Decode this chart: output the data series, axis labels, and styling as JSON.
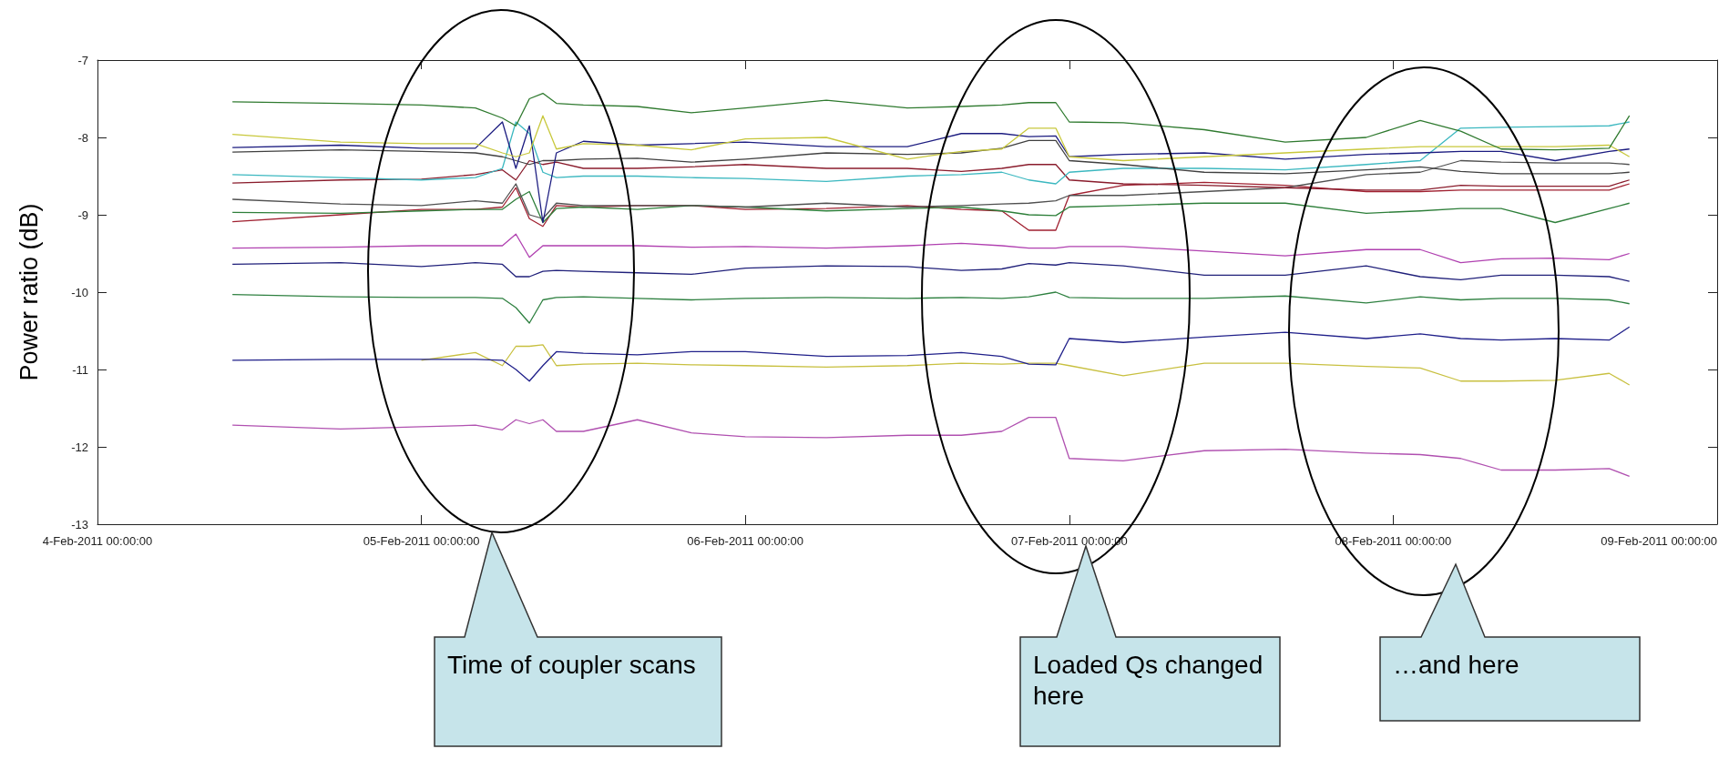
{
  "chart_data": {
    "type": "line",
    "ylabel": "Power ratio (dB)",
    "x": [
      "2011-02-04T10:00",
      "2011-02-04T18:00",
      "2011-02-05T00:00",
      "2011-02-05T04:00",
      "2011-02-05T06:00",
      "2011-02-05T07:00",
      "2011-02-05T08:00",
      "2011-02-05T09:00",
      "2011-02-05T10:00",
      "2011-02-05T12:00",
      "2011-02-05T16:00",
      "2011-02-05T20:00",
      "2011-02-06T00:00",
      "2011-02-06T06:00",
      "2011-02-06T12:00",
      "2011-02-06T16:00",
      "2011-02-06T19:00",
      "2011-02-06T21:00",
      "2011-02-06T23:00",
      "2011-02-07T00:00",
      "2011-02-07T04:00",
      "2011-02-07T10:00",
      "2011-02-07T16:00",
      "2011-02-07T22:00",
      "2011-02-08T02:00",
      "2011-02-08T05:00",
      "2011-02-08T08:00",
      "2011-02-08T12:00",
      "2011-02-08T16:00",
      "2011-02-08T17:30"
    ],
    "series": [
      {
        "color": "#2f7a2f",
        "values": [
          -7.54,
          -7.56,
          -7.58,
          -7.62,
          -7.75,
          -7.85,
          -7.5,
          -7.43,
          -7.56,
          -7.58,
          -7.6,
          -7.68,
          -7.62,
          -7.52,
          -7.62,
          -7.6,
          -7.58,
          -7.55,
          -7.55,
          -7.8,
          -7.81,
          -7.9,
          -8.06,
          -8.0,
          -7.78,
          -7.92,
          -8.15,
          -8.16,
          -8.14,
          -7.72
        ]
      },
      {
        "color": "#c8c83c",
        "values": [
          -7.96,
          -8.06,
          -8.08,
          -8.08,
          -8.2,
          -8.25,
          -8.2,
          -7.72,
          -8.15,
          -8.08,
          -8.1,
          -8.16,
          -8.02,
          -8.0,
          -8.28,
          -8.18,
          -8.15,
          -7.88,
          -7.88,
          -8.25,
          -8.3,
          -8.25,
          -8.2,
          -8.15,
          -8.12,
          -8.12,
          -8.12,
          -8.12,
          -8.1,
          -8.25
        ]
      },
      {
        "color": "#1c1c80",
        "values": [
          -8.13,
          -8.1,
          -8.14,
          -8.14,
          -7.8,
          -8.4,
          -7.85,
          -9.1,
          -8.2,
          -8.05,
          -8.1,
          -8.08,
          -8.06,
          -8.12,
          -8.12,
          -7.95,
          -7.95,
          -7.99,
          -7.98,
          -8.25,
          -8.22,
          -8.2,
          -8.28,
          -8.22,
          -8.2,
          -8.18,
          -8.18,
          -8.3,
          -8.18,
          -8.15
        ]
      },
      {
        "color": "#404040",
        "values": [
          -8.19,
          -8.16,
          -8.18,
          -8.2,
          -8.25,
          -8.3,
          -8.35,
          -8.3,
          -8.3,
          -8.28,
          -8.27,
          -8.32,
          -8.28,
          -8.2,
          -8.22,
          -8.2,
          -8.14,
          -8.04,
          -8.04,
          -8.3,
          -8.35,
          -8.45,
          -8.47,
          -8.42,
          -8.38,
          -8.44,
          -8.47,
          -8.47,
          -8.47,
          -8.45
        ]
      },
      {
        "color": "#3cb8c0",
        "values": [
          -8.48,
          -8.52,
          -8.55,
          -8.52,
          -8.4,
          -7.8,
          -7.95,
          -8.45,
          -8.52,
          -8.5,
          -8.5,
          -8.52,
          -8.53,
          -8.57,
          -8.5,
          -8.48,
          -8.45,
          -8.55,
          -8.6,
          -8.45,
          -8.4,
          -8.4,
          -8.42,
          -8.35,
          -8.3,
          -7.88,
          -7.87,
          -7.86,
          -7.85,
          -7.8
        ]
      },
      {
        "color": "#8a1c2c",
        "values": [
          -8.59,
          -8.55,
          -8.54,
          -8.48,
          -8.42,
          -8.55,
          -8.3,
          -8.35,
          -8.32,
          -8.4,
          -8.4,
          -8.38,
          -8.35,
          -8.4,
          -8.4,
          -8.44,
          -8.4,
          -8.35,
          -8.35,
          -8.55,
          -8.6,
          -8.62,
          -8.65,
          -8.68,
          -8.68,
          -8.62,
          -8.63,
          -8.63,
          -8.63,
          -8.55
        ]
      },
      {
        "color": "#505050",
        "values": [
          -8.8,
          -8.86,
          -8.88,
          -8.82,
          -8.85,
          -8.6,
          -9.0,
          -9.05,
          -8.85,
          -8.88,
          -8.88,
          -8.88,
          -8.9,
          -8.85,
          -8.9,
          -8.88,
          -8.86,
          -8.85,
          -8.82,
          -8.75,
          -8.75,
          -8.7,
          -8.65,
          -8.48,
          -8.45,
          -8.3,
          -8.32,
          -8.33,
          -8.33,
          -8.35
        ]
      },
      {
        "color": "#2e7f3a",
        "values": [
          -8.97,
          -8.98,
          -8.95,
          -8.93,
          -8.93,
          -8.8,
          -8.7,
          -9.1,
          -8.92,
          -8.9,
          -8.93,
          -8.88,
          -8.9,
          -8.95,
          -8.92,
          -8.9,
          -8.95,
          -9.0,
          -9.01,
          -8.9,
          -8.88,
          -8.85,
          -8.85,
          -8.98,
          -8.95,
          -8.92,
          -8.92,
          -9.1,
          -8.92,
          -8.85
        ]
      },
      {
        "color": "#a02030",
        "values": [
          -9.09,
          -9.0,
          -8.93,
          -8.93,
          -8.9,
          -8.65,
          -9.05,
          -9.15,
          -8.88,
          -8.9,
          -8.88,
          -8.88,
          -8.93,
          -8.92,
          -8.88,
          -8.93,
          -8.95,
          -9.2,
          -9.2,
          -8.75,
          -8.62,
          -8.58,
          -8.62,
          -8.7,
          -8.7,
          -8.68,
          -8.68,
          -8.68,
          -8.68,
          -8.6
        ]
      },
      {
        "color": "#b040b0",
        "values": [
          -9.43,
          -9.42,
          -9.4,
          -9.4,
          -9.4,
          -9.25,
          -9.55,
          -9.4,
          -9.4,
          -9.4,
          -9.4,
          -9.42,
          -9.41,
          -9.43,
          -9.4,
          -9.37,
          -9.4,
          -9.43,
          -9.43,
          -9.41,
          -9.41,
          -9.47,
          -9.53,
          -9.45,
          -9.45,
          -9.62,
          -9.57,
          -9.56,
          -9.58,
          -9.5
        ]
      },
      {
        "color": "#20207a",
        "values": [
          -9.64,
          -9.62,
          -9.67,
          -9.62,
          -9.64,
          -9.8,
          -9.8,
          -9.73,
          -9.72,
          -9.73,
          -9.75,
          -9.77,
          -9.69,
          -9.66,
          -9.67,
          -9.72,
          -9.7,
          -9.63,
          -9.65,
          -9.62,
          -9.66,
          -9.78,
          -9.78,
          -9.66,
          -9.8,
          -9.84,
          -9.78,
          -9.78,
          -9.8,
          -9.86
        ]
      },
      {
        "color": "#2e8040",
        "values": [
          -10.03,
          -10.06,
          -10.07,
          -10.07,
          -10.08,
          -10.2,
          -10.4,
          -10.1,
          -10.07,
          -10.06,
          -10.08,
          -10.1,
          -10.08,
          -10.07,
          -10.08,
          -10.07,
          -10.08,
          -10.06,
          -10.0,
          -10.07,
          -10.08,
          -10.08,
          -10.05,
          -10.14,
          -10.06,
          -10.1,
          -10.08,
          -10.08,
          -10.1,
          -10.15
        ]
      },
      {
        "color": "#20208a",
        "values": [
          -10.88,
          -10.87,
          -10.87,
          -10.87,
          -10.88,
          -11.0,
          -11.15,
          -10.95,
          -10.77,
          -10.79,
          -10.81,
          -10.77,
          -10.77,
          -10.83,
          -10.82,
          -10.78,
          -10.83,
          -10.93,
          -10.94,
          -10.6,
          -10.65,
          -10.58,
          -10.52,
          -10.6,
          -10.54,
          -10.6,
          -10.62,
          -10.6,
          -10.62,
          -10.45
        ]
      },
      {
        "color": "#c8c040",
        "values": [
          null,
          null,
          -10.88,
          -10.78,
          -10.95,
          -10.7,
          -10.7,
          -10.68,
          -10.95,
          -10.93,
          -10.92,
          -10.94,
          -10.95,
          -10.97,
          -10.95,
          -10.92,
          -10.93,
          -10.92,
          -10.92,
          -10.95,
          -11.08,
          -10.92,
          -10.92,
          -10.96,
          -10.98,
          -11.15,
          -11.15,
          -11.14,
          -11.05,
          -11.2
        ]
      },
      {
        "color": "#b050b0",
        "values": [
          -11.72,
          -11.77,
          -11.74,
          -11.72,
          -11.78,
          -11.65,
          -11.7,
          -11.65,
          -11.8,
          -11.8,
          -11.65,
          -11.82,
          -11.87,
          -11.88,
          -11.85,
          -11.85,
          -11.8,
          -11.62,
          -11.62,
          -12.15,
          -12.18,
          -12.05,
          -12.03,
          -12.08,
          -12.1,
          -12.15,
          -12.3,
          -12.3,
          -12.28,
          -12.38
        ]
      }
    ],
    "xlim": [
      "2011-02-04T00:00",
      "2011-02-09T00:00"
    ],
    "xticks": [
      {
        "value": "2011-02-04T00:00",
        "label": "4-Feb-2011 00:00:00"
      },
      {
        "value": "2011-02-05T00:00",
        "label": "05-Feb-2011 00:00:00"
      },
      {
        "value": "2011-02-06T00:00",
        "label": "06-Feb-2011 00:00:00"
      },
      {
        "value": "2011-02-07T00:00",
        "label": "07-Feb-2011 00:00:00"
      },
      {
        "value": "2011-02-08T00:00",
        "label": "08-Feb-2011 00:00:00"
      },
      {
        "value": "2011-02-09T00:00",
        "label": "09-Feb-2011 00:00:00"
      }
    ],
    "ylim": [
      -13,
      -7
    ],
    "yticks": [
      -13,
      -12,
      -11,
      -10,
      -9,
      -8,
      -7
    ],
    "marker": "none",
    "line_style": "solid",
    "annotations": [
      "Time of coupler scans",
      "Loaded Qs changed here",
      "…and here"
    ]
  }
}
